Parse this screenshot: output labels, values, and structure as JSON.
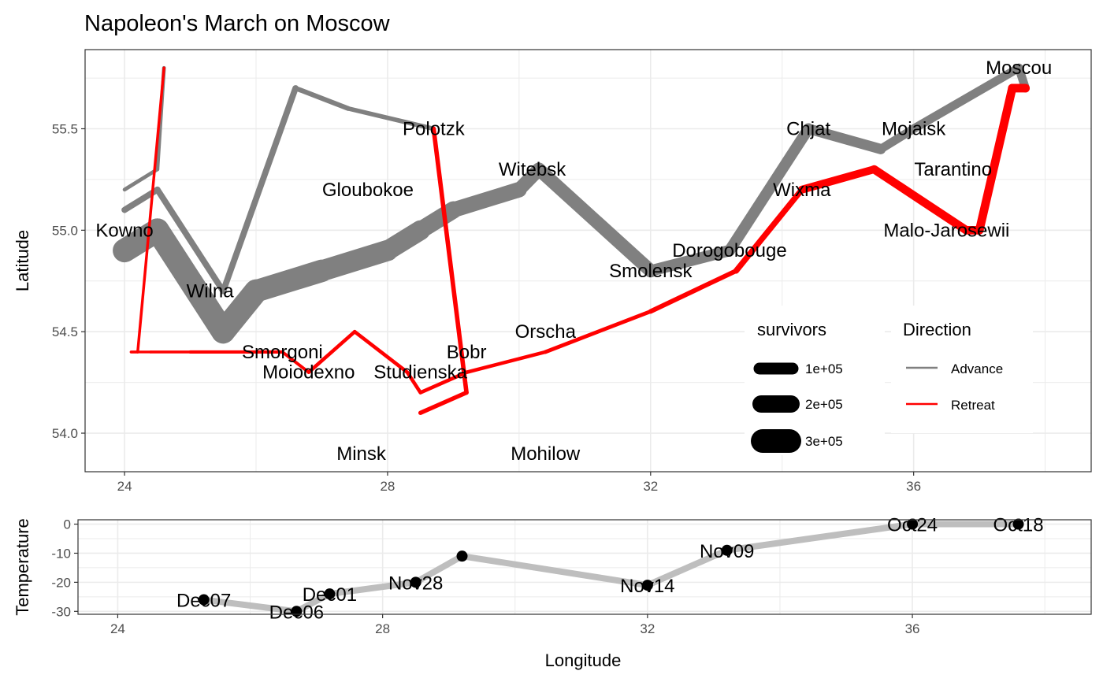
{
  "chart_data": [
    {
      "type": "line",
      "title": "Napoleon's March on Moscow",
      "xlabel": "",
      "ylabel": "Latitude",
      "xlim": [
        23.4,
        38.7
      ],
      "ylim": [
        53.81,
        55.89
      ],
      "xticks": [
        24,
        28,
        32,
        36
      ],
      "xtick_labels": [
        "24",
        "28",
        "32",
        "36"
      ],
      "yticks": [
        54.0,
        54.5,
        55.0,
        55.5
      ],
      "ytick_labels": [
        "54.0",
        "54.5",
        "55.0",
        "55.5"
      ],
      "grid": true,
      "troops": [
        {
          "group": 1,
          "direction": "Advance",
          "path": [
            {
              "long": 24.0,
              "lat": 54.9,
              "survivors": 340000
            },
            {
              "long": 24.5,
              "lat": 55.0,
              "survivors": 340000
            },
            {
              "long": 25.5,
              "lat": 54.5,
              "survivors": 340000
            },
            {
              "long": 26.0,
              "lat": 54.7,
              "survivors": 320000
            },
            {
              "long": 27.0,
              "lat": 54.8,
              "survivors": 300000
            },
            {
              "long": 28.0,
              "lat": 54.9,
              "survivors": 280000
            },
            {
              "long": 28.5,
              "lat": 55.0,
              "survivors": 240000
            },
            {
              "long": 29.0,
              "lat": 55.1,
              "survivors": 210000
            },
            {
              "long": 30.0,
              "lat": 55.2,
              "survivors": 180000
            },
            {
              "long": 30.3,
              "lat": 55.3,
              "survivors": 175000
            },
            {
              "long": 32.0,
              "lat": 54.8,
              "survivors": 145000
            },
            {
              "long": 33.2,
              "lat": 54.9,
              "survivors": 140000
            },
            {
              "long": 34.4,
              "lat": 55.5,
              "survivors": 127100
            },
            {
              "long": 35.5,
              "lat": 55.4,
              "survivors": 100000
            },
            {
              "long": 36.0,
              "lat": 55.5,
              "survivors": 100000
            },
            {
              "long": 37.6,
              "lat": 55.8,
              "survivors": 100000
            },
            {
              "long": 37.7,
              "lat": 55.7,
              "survivors": 100000
            }
          ]
        },
        {
          "group": 1,
          "direction": "Retreat",
          "path": [
            {
              "long": 37.7,
              "lat": 55.7,
              "survivors": 100000
            },
            {
              "long": 37.5,
              "lat": 55.7,
              "survivors": 98000
            },
            {
              "long": 37.0,
              "lat": 55.0,
              "survivors": 97000
            },
            {
              "long": 36.8,
              "lat": 55.0,
              "survivors": 96000
            },
            {
              "long": 35.4,
              "lat": 55.3,
              "survivors": 87000
            },
            {
              "long": 34.3,
              "lat": 55.2,
              "survivors": 55000
            },
            {
              "long": 33.3,
              "lat": 54.8,
              "survivors": 37000
            },
            {
              "long": 32.0,
              "lat": 54.6,
              "survivors": 24000
            },
            {
              "long": 30.4,
              "lat": 54.4,
              "survivors": 20000
            },
            {
              "long": 29.2,
              "lat": 54.3,
              "survivors": 20000
            },
            {
              "long": 28.5,
              "lat": 54.2,
              "survivors": 20000
            },
            {
              "long": 28.3,
              "lat": 54.3,
              "survivors": 20000
            },
            {
              "long": 27.5,
              "lat": 54.5,
              "survivors": 20000
            },
            {
              "long": 26.8,
              "lat": 54.3,
              "survivors": 12000
            },
            {
              "long": 26.4,
              "lat": 54.4,
              "survivors": 14000
            },
            {
              "long": 25.0,
              "lat": 54.4,
              "survivors": 8000
            },
            {
              "long": 24.4,
              "lat": 54.4,
              "survivors": 4000
            },
            {
              "long": 24.2,
              "lat": 54.4,
              "survivors": 4000
            },
            {
              "long": 24.1,
              "lat": 54.4,
              "survivors": 4000
            }
          ]
        },
        {
          "group": 2,
          "direction": "Advance",
          "path": [
            {
              "long": 24.0,
              "lat": 55.1,
              "survivors": 60000
            },
            {
              "long": 24.5,
              "lat": 55.2,
              "survivors": 60000
            },
            {
              "long": 25.5,
              "lat": 54.7,
              "survivors": 60000
            },
            {
              "long": 26.6,
              "lat": 55.7,
              "survivors": 40000
            },
            {
              "long": 27.4,
              "lat": 55.6,
              "survivors": 33000
            },
            {
              "long": 28.7,
              "lat": 55.5,
              "survivors": 33000
            }
          ]
        },
        {
          "group": 2,
          "direction": "Retreat",
          "path": [
            {
              "long": 28.7,
              "lat": 55.5,
              "survivors": 33000
            },
            {
              "long": 29.2,
              "lat": 54.2,
              "survivors": 30000
            },
            {
              "long": 28.5,
              "lat": 54.1,
              "survivors": 30000
            }
          ]
        },
        {
          "group": 3,
          "direction": "Advance",
          "path": [
            {
              "long": 24.0,
              "lat": 55.2,
              "survivors": 22000
            },
            {
              "long": 24.5,
              "lat": 55.3,
              "survivors": 22000
            },
            {
              "long": 24.6,
              "lat": 55.8,
              "survivors": 6000
            }
          ]
        },
        {
          "group": 3,
          "direction": "Retreat",
          "path": [
            {
              "long": 24.6,
              "lat": 55.8,
              "survivors": 6000
            },
            {
              "long": 24.2,
              "lat": 54.4,
              "survivors": 6000
            },
            {
              "long": 24.1,
              "lat": 54.4,
              "survivors": 6000
            }
          ]
        }
      ],
      "cities": [
        {
          "name": "Kowno",
          "long": 24.0,
          "lat": 55.0
        },
        {
          "name": "Wilna",
          "long": 25.3,
          "lat": 54.7
        },
        {
          "name": "Smorgoni",
          "long": 26.4,
          "lat": 54.4
        },
        {
          "name": "Moiodexno",
          "long": 26.8,
          "lat": 54.3
        },
        {
          "name": "Gloubokoe",
          "long": 27.7,
          "lat": 55.2
        },
        {
          "name": "Minsk",
          "long": 27.6,
          "lat": 53.9
        },
        {
          "name": "Studienska",
          "long": 28.5,
          "lat": 54.3
        },
        {
          "name": "Polotzk",
          "long": 28.7,
          "lat": 55.5
        },
        {
          "name": "Bobr",
          "long": 29.2,
          "lat": 54.4
        },
        {
          "name": "Witebsk",
          "long": 30.2,
          "lat": 55.3
        },
        {
          "name": "Orscha",
          "long": 30.4,
          "lat": 54.5
        },
        {
          "name": "Mohilow",
          "long": 30.4,
          "lat": 53.9
        },
        {
          "name": "Smolensk",
          "long": 32.0,
          "lat": 54.8
        },
        {
          "name": "Dorogobouge",
          "long": 33.2,
          "lat": 54.9
        },
        {
          "name": "Wixma",
          "long": 34.3,
          "lat": 55.2
        },
        {
          "name": "Chjat",
          "long": 34.4,
          "lat": 55.5
        },
        {
          "name": "Mojaisk",
          "long": 36.0,
          "lat": 55.5
        },
        {
          "name": "Moscou",
          "long": 37.6,
          "lat": 55.8
        },
        {
          "name": "Tarantino",
          "long": 36.6,
          "lat": 55.3
        },
        {
          "name": "Malo-Jarosewii",
          "long": 36.5,
          "lat": 55.0
        }
      ],
      "legend": {
        "placement": "bottom-right inside",
        "survivors": {
          "title": "survivors",
          "entries": [
            {
              "label": "1e+05",
              "value": 100000
            },
            {
              "label": "2e+05",
              "value": 200000
            },
            {
              "label": "3e+05",
              "value": 300000
            }
          ]
        },
        "direction": {
          "title": "Direction",
          "entries": [
            {
              "label": "Advance",
              "color": "#808080"
            },
            {
              "label": "Retreat",
              "color": "#ff0000"
            }
          ]
        }
      },
      "colors": {
        "advance": "#808080",
        "retreat": "#ff0000"
      }
    },
    {
      "type": "line",
      "title": "",
      "xlabel": "Longitude",
      "ylabel": "Temperature",
      "xlim": [
        23.4,
        38.7
      ],
      "ylim": [
        -31,
        1.5
      ],
      "xticks": [
        24,
        28,
        32,
        36
      ],
      "xtick_labels": [
        "24",
        "28",
        "32",
        "36"
      ],
      "yticks": [
        0,
        -10,
        -20,
        -30
      ],
      "ytick_labels": [
        "0",
        "-10",
        "-20",
        "-30"
      ],
      "grid": true,
      "points": [
        {
          "long": 37.6,
          "temp": 0,
          "label": "Oct18"
        },
        {
          "long": 36.0,
          "temp": 0,
          "label": "Oct24"
        },
        {
          "long": 33.2,
          "temp": -9,
          "label": "Nov09"
        },
        {
          "long": 32.0,
          "temp": -21,
          "label": "Nov14"
        },
        {
          "long": 29.2,
          "temp": -11,
          "label": ""
        },
        {
          "long": 28.5,
          "temp": -20,
          "label": "Nov28"
        },
        {
          "long": 27.2,
          "temp": -24,
          "label": "Dec01"
        },
        {
          "long": 26.7,
          "temp": -30,
          "label": "Dec06"
        },
        {
          "long": 25.3,
          "temp": -26,
          "label": "Dec07"
        }
      ],
      "colors": {
        "line": "#bebebe",
        "point": "#000000"
      }
    }
  ]
}
